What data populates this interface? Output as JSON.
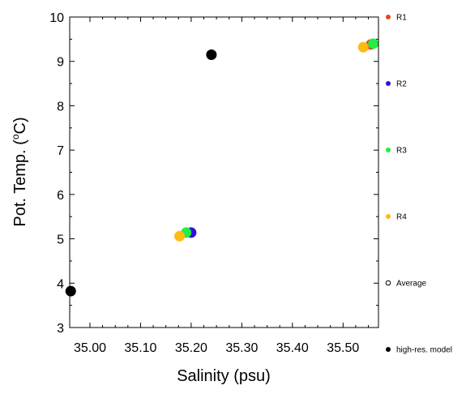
{
  "chart_data": {
    "type": "scatter",
    "xlabel": "Salinity (psu)",
    "ylabel_main": "Pot. Temp. (",
    "ylabel_sup": "o",
    "ylabel_tail": "C)",
    "xlim": [
      34.96,
      35.57
    ],
    "ylim": [
      3,
      10
    ],
    "x_ticks": [
      35.0,
      35.1,
      35.2,
      35.3,
      35.4,
      35.5
    ],
    "x_tick_labels": [
      "35.00",
      "35.10",
      "35.20",
      "35.30",
      "35.40",
      "35.50"
    ],
    "x_minor_ticks": [
      35.025,
      35.05,
      35.075,
      35.125,
      35.15,
      35.175,
      35.225,
      35.25,
      35.275,
      35.325,
      35.35,
      35.375,
      35.425,
      35.45,
      35.475,
      35.525,
      35.55
    ],
    "y_ticks": [
      3,
      4,
      5,
      6,
      7,
      8,
      9,
      10
    ],
    "y_tick_labels": [
      "3",
      "4",
      "5",
      "6",
      "7",
      "8",
      "9",
      "10"
    ],
    "y_minor_ticks": [
      3.5,
      4.5,
      5.5,
      6.5,
      7.5,
      8.5,
      9.5
    ],
    "grid": false,
    "legend_position": "right",
    "legend": [
      {
        "name": "R1",
        "color": "#ee4422",
        "marker": "filled"
      },
      {
        "name": "R2",
        "color": "#3311dd",
        "marker": "filled"
      },
      {
        "name": "R3",
        "color": "#22ee44",
        "marker": "filled"
      },
      {
        "name": "R4",
        "color": "#ffbb11",
        "marker": "filled"
      },
      {
        "name": "Average",
        "color": "#000000",
        "marker": "open"
      },
      {
        "name": "high-res. model",
        "color": "#000000",
        "marker": "filled"
      }
    ],
    "series": [
      {
        "name": "high-res. model",
        "color": "#000000",
        "points": [
          [
            34.962,
            3.82
          ],
          [
            35.24,
            9.15
          ]
        ]
      },
      {
        "name": "R1",
        "color": "#ee4422",
        "points": [
          [
            35.555,
            9.38
          ]
        ]
      },
      {
        "name": "R2",
        "color": "#3311dd",
        "points": [
          [
            35.2,
            5.14
          ]
        ]
      },
      {
        "name": "R3",
        "color": "#22ee44",
        "points": [
          [
            35.19,
            5.14
          ],
          [
            35.56,
            9.4
          ]
        ]
      },
      {
        "name": "R4",
        "color": "#ffbb11",
        "points": [
          [
            35.177,
            5.06
          ],
          [
            35.54,
            9.32
          ]
        ]
      }
    ]
  }
}
